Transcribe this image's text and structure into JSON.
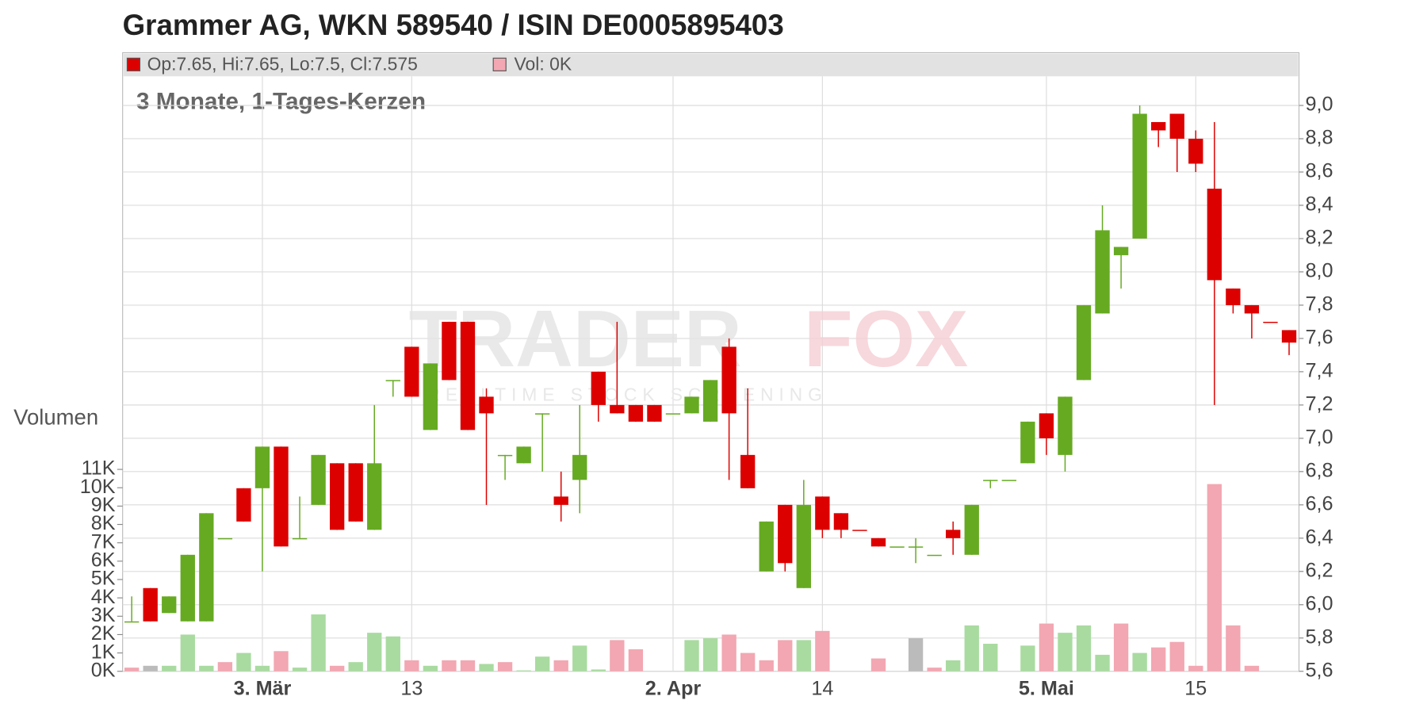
{
  "chart_data": {
    "type": "candlestick",
    "title": "Grammer AG, WKN 589540 / ISIN DE0005895403",
    "subtitle": "3 Monate, 1-Tages-Kerzen",
    "legend": {
      "price": "Op:7.65, Hi:7.65, Lo:7.5, Cl:7.575",
      "price_color": "#dd0000",
      "volume": "Vol: 0K",
      "volume_color": "#f2a7b2"
    },
    "watermark": [
      "TRADER",
      "FOX",
      "REALTIME STOCK SCREENING"
    ],
    "categories": [
      null,
      null,
      null,
      null,
      null,
      null,
      null,
      "3. Mär",
      null,
      null,
      null,
      null,
      null,
      null,
      null,
      "13",
      null,
      null,
      null,
      null,
      null,
      null,
      null,
      null,
      null,
      null,
      null,
      null,
      null,
      "2. Apr",
      null,
      null,
      null,
      null,
      null,
      null,
      null,
      "14",
      null,
      null,
      null,
      null,
      null,
      null,
      null,
      null,
      null,
      null,
      null,
      "5. Mai",
      null,
      null,
      null,
      null,
      null,
      null,
      null,
      "15",
      null,
      null,
      null,
      null,
      null
    ],
    "open": [
      5.9,
      6.1,
      5.95,
      5.9,
      5.9,
      6.4,
      6.7,
      6.7,
      6.95,
      6.4,
      6.6,
      6.85,
      6.85,
      6.45,
      7.35,
      7.55,
      7.05,
      7.7,
      7.7,
      7.25,
      6.9,
      6.85,
      7.15,
      6.65,
      6.75,
      7.4,
      7.2,
      7.2,
      7.2,
      7.15,
      7.15,
      7.1,
      7.55,
      6.9,
      6.2,
      6.6,
      6.1,
      6.65,
      6.55,
      6.45,
      6.4,
      6.35,
      6.35,
      6.3,
      6.45,
      6.3,
      6.75,
      6.75,
      6.85,
      7.15,
      6.9,
      7.35,
      7.75,
      8.1,
      8.2,
      8.9,
      8.95,
      8.8,
      8.5,
      7.9,
      7.8,
      7.7,
      7.65
    ],
    "high": [
      6.05,
      6.1,
      6.05,
      6.3,
      6.55,
      6.4,
      6.7,
      6.95,
      6.95,
      6.65,
      6.9,
      6.85,
      6.85,
      7.2,
      7.35,
      7.55,
      7.45,
      7.7,
      7.7,
      7.3,
      6.9,
      6.95,
      7.15,
      6.8,
      7.2,
      7.4,
      7.7,
      7.2,
      7.2,
      7.15,
      7.25,
      7.35,
      7.6,
      7.3,
      6.5,
      6.6,
      6.75,
      6.65,
      6.55,
      6.45,
      6.4,
      6.35,
      6.4,
      6.3,
      6.5,
      6.6,
      6.75,
      6.75,
      7.1,
      7.15,
      7.25,
      7.8,
      8.4,
      8.15,
      9.0,
      8.9,
      8.95,
      8.85,
      8.9,
      7.9,
      7.8,
      7.7,
      7.65
    ],
    "low": [
      5.9,
      5.9,
      5.95,
      5.9,
      5.9,
      6.4,
      6.5,
      6.2,
      6.35,
      6.4,
      6.6,
      6.45,
      6.5,
      6.45,
      7.25,
      7.25,
      7.05,
      7.35,
      7.05,
      6.6,
      6.75,
      6.85,
      6.8,
      6.5,
      6.55,
      7.1,
      7.15,
      7.1,
      7.1,
      7.15,
      7.15,
      7.1,
      6.75,
      6.7,
      6.2,
      6.2,
      6.1,
      6.4,
      6.4,
      6.45,
      6.35,
      6.35,
      6.25,
      6.3,
      6.3,
      6.3,
      6.7,
      6.75,
      6.85,
      6.9,
      6.8,
      7.35,
      7.75,
      7.9,
      8.2,
      8.75,
      8.6,
      8.6,
      7.2,
      7.75,
      7.6,
      7.7,
      7.5
    ],
    "close": [
      5.9,
      5.9,
      6.05,
      6.3,
      6.55,
      6.4,
      6.5,
      6.95,
      6.35,
      6.4,
      6.9,
      6.45,
      6.5,
      6.85,
      7.35,
      7.25,
      7.45,
      7.35,
      7.05,
      7.15,
      6.9,
      6.95,
      7.15,
      6.6,
      6.9,
      7.2,
      7.15,
      7.1,
      7.1,
      7.15,
      7.25,
      7.35,
      7.15,
      6.7,
      6.5,
      6.25,
      6.6,
      6.45,
      6.45,
      6.45,
      6.35,
      6.35,
      6.35,
      6.3,
      6.4,
      6.6,
      6.75,
      6.75,
      7.1,
      7.0,
      7.25,
      7.8,
      8.25,
      8.15,
      8.95,
      8.85,
      8.8,
      8.65,
      7.95,
      7.8,
      7.75,
      7.7,
      7.575
    ],
    "colors": [
      "#66aa22",
      "#dd0000",
      "#66aa22",
      "#66aa22",
      "#66aa22",
      "#66aa22",
      "#dd0000",
      "#66aa22",
      "#dd0000",
      "#66aa22",
      "#66aa22",
      "#dd0000",
      "#dd0000",
      "#66aa22",
      "#66aa22",
      "#dd0000",
      "#66aa22",
      "#dd0000",
      "#dd0000",
      "#dd0000",
      "#66aa22",
      "#66aa22",
      "#66aa22",
      "#dd0000",
      "#66aa22",
      "#dd0000",
      "#dd0000",
      "#dd0000",
      "#dd0000",
      "#66aa22",
      "#66aa22",
      "#66aa22",
      "#dd0000",
      "#dd0000",
      "#66aa22",
      "#dd0000",
      "#66aa22",
      "#dd0000",
      "#dd0000",
      "#dd0000",
      "#dd0000",
      "#66aa22",
      "#66aa22",
      "#66aa22",
      "#dd0000",
      "#66aa22",
      "#66aa22",
      "#66aa22",
      "#66aa22",
      "#dd0000",
      "#66aa22",
      "#66aa22",
      "#66aa22",
      "#66aa22",
      "#66aa22",
      "#dd0000",
      "#dd0000",
      "#dd0000",
      "#dd0000",
      "#dd0000",
      "#dd0000",
      "#dd0000",
      "#dd0000"
    ],
    "ylim": [
      5.6,
      9.317
    ],
    "yticks": [
      {
        "value": 5.6,
        "label": "5,6"
      },
      {
        "value": 5.8,
        "label": "5,8"
      },
      {
        "value": 6.0,
        "label": "6,0"
      },
      {
        "value": 6.2,
        "label": "6,2"
      },
      {
        "value": 6.4,
        "label": "6,4"
      },
      {
        "value": 6.6,
        "label": "6,6"
      },
      {
        "value": 6.8,
        "label": "6,8"
      },
      {
        "value": 7.0,
        "label": "7,0"
      },
      {
        "value": 7.2,
        "label": "7,2"
      },
      {
        "value": 7.4,
        "label": "7,4"
      },
      {
        "value": 7.6,
        "label": "7,6"
      },
      {
        "value": 7.8,
        "label": "7,8"
      },
      {
        "value": 8.0,
        "label": "8,0"
      },
      {
        "value": 8.2,
        "label": "8,2"
      },
      {
        "value": 8.4,
        "label": "8,4"
      },
      {
        "value": 8.6,
        "label": "8,6"
      },
      {
        "value": 8.8,
        "label": "8,8"
      },
      {
        "value": 9.0,
        "label": "9,0"
      }
    ],
    "grid": true,
    "volume": {
      "name": "Volumen",
      "values": [
        200,
        300,
        300,
        2000,
        300,
        500,
        1000,
        300,
        1100,
        200,
        3100,
        300,
        500,
        2100,
        1900,
        600,
        300,
        600,
        600,
        400,
        500,
        50,
        800,
        600,
        1400,
        100,
        1700,
        1200,
        0,
        0,
        1700,
        1800,
        2000,
        1000,
        600,
        1700,
        1700,
        2200,
        0,
        0,
        700,
        0,
        1800,
        200,
        600,
        2500,
        1500,
        0,
        1400,
        2600,
        2100,
        2500,
        900,
        2600,
        1000,
        1300,
        1600,
        300,
        10200,
        2500,
        300,
        0,
        0
      ],
      "colors": [
        "#f2a7b2",
        "#bbbbbb",
        "#a9dba0",
        "#a9dba0",
        "#a9dba0",
        "#f2a7b2",
        "#a9dba0",
        "#a9dba0",
        "#f2a7b2",
        "#a9dba0",
        "#a9dba0",
        "#f2a7b2",
        "#a9dba0",
        "#a9dba0",
        "#a9dba0",
        "#f2a7b2",
        "#a9dba0",
        "#f2a7b2",
        "#f2a7b2",
        "#a9dba0",
        "#f2a7b2",
        "#a9dba0",
        "#a9dba0",
        "#f2a7b2",
        "#a9dba0",
        "#a9dba0",
        "#f2a7b2",
        "#f2a7b2",
        "#a9dba0",
        "#a9dba0",
        "#a9dba0",
        "#a9dba0",
        "#f2a7b2",
        "#f2a7b2",
        "#f2a7b2",
        "#f2a7b2",
        "#a9dba0",
        "#f2a7b2",
        "#f2a7b2",
        "#f2a7b2",
        "#f2a7b2",
        "#a9dba0",
        "#bbbbbb",
        "#f2a7b2",
        "#a9dba0",
        "#a9dba0",
        "#a9dba0",
        "#a9dba0",
        "#a9dba0",
        "#f2a7b2",
        "#a9dba0",
        "#a9dba0",
        "#a9dba0",
        "#f2a7b2",
        "#a9dba0",
        "#f2a7b2",
        "#f2a7b2",
        "#f2a7b2",
        "#f2a7b2",
        "#f2a7b2",
        "#f2a7b2",
        "#a9dba0",
        "#f2a7b2"
      ],
      "ylim": [
        0,
        33700
      ],
      "yticks": [
        {
          "value": 0,
          "label": "0K"
        },
        {
          "value": 1000,
          "label": "1K"
        },
        {
          "value": 2000,
          "label": "2K"
        },
        {
          "value": 3000,
          "label": "3K"
        },
        {
          "value": 4000,
          "label": "4K"
        },
        {
          "value": 5000,
          "label": "5K"
        },
        {
          "value": 6000,
          "label": "6K"
        },
        {
          "value": 7000,
          "label": "7K"
        },
        {
          "value": 8000,
          "label": "8K"
        },
        {
          "value": 9000,
          "label": "9K"
        },
        {
          "value": 10000,
          "label": "10K"
        },
        {
          "value": 11000,
          "label": "11K"
        }
      ]
    }
  }
}
